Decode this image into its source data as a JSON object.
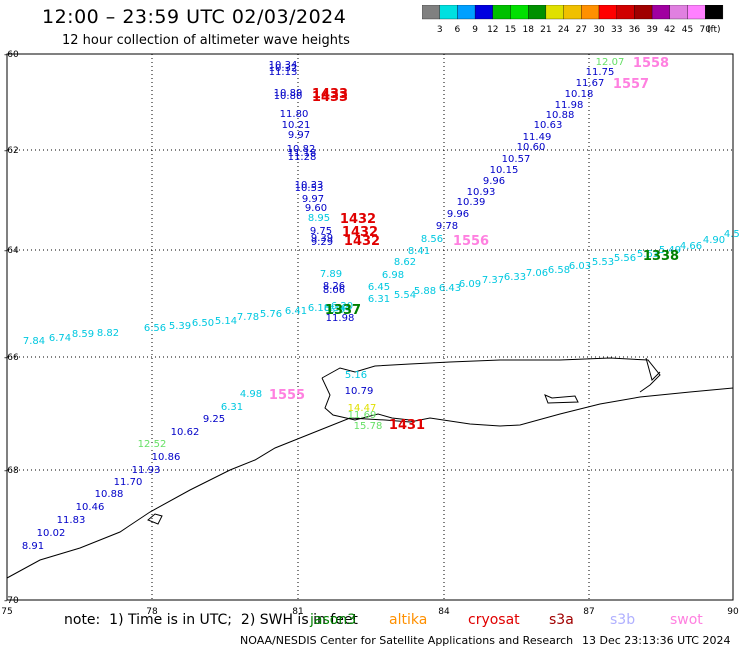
{
  "title": "12:00 – 23:59 UTC 02/03/2024",
  "subtitle": "12 hour collection of altimeter wave heights",
  "colorbar": {
    "unit": "(ft)",
    "labels": [
      "3",
      "6",
      "9",
      "12",
      "15",
      "18",
      "21",
      "24",
      "27",
      "30",
      "33",
      "36",
      "39",
      "42",
      "45",
      "70"
    ],
    "colors": [
      "#808080",
      "#00e0e0",
      "#00a0ff",
      "#0000e0",
      "#00c000",
      "#00e000",
      "#009000",
      "#e0e000",
      "#f0c000",
      "#ff9000",
      "#ff0000",
      "#d00000",
      "#a00000",
      "#a000a0",
      "#e080e0",
      "#ff80ff",
      "#000000"
    ]
  },
  "axes": {
    "lat_labels": [
      "-60",
      "-62",
      "-64",
      "-66",
      "-68",
      "-70"
    ],
    "lon_labels": [
      "75",
      "78",
      "81",
      "84",
      "87",
      "90"
    ]
  },
  "tracks": [
    {
      "color": "#0000c8",
      "labels": [
        "10.34",
        "10.32",
        "11.13",
        "10.89",
        "10.80",
        "11.80",
        "10.21",
        "9.97",
        "10.82",
        "11.18",
        "11.28",
        "10.33",
        "10.53",
        "9.97",
        "9.60",
        "9.75",
        "9.39",
        "9.29"
      ]
    },
    {
      "color": "#00c8e0",
      "labels": [
        "8.95",
        "7.89"
      ]
    },
    {
      "color": "#0000c8",
      "labels": [
        "8.26",
        "8.06",
        "11.98"
      ]
    },
    {
      "color": "#0000c8",
      "labels": [
        "8.91",
        "10.02",
        "11.83",
        "10.46",
        "10.88",
        "11.70",
        "11.93",
        "10.86",
        "10.62",
        "9.25"
      ]
    },
    {
      "color": "#00c8e0",
      "labels": [
        "6.31",
        "4.98"
      ]
    },
    {
      "color": "#66e066",
      "labels": [
        "12.52"
      ]
    },
    {
      "color": "#00c8e0",
      "labels": [
        "7.84",
        "6.74",
        "8.59",
        "8.82",
        "6.56",
        "5.39",
        "6.50",
        "5.14",
        "7.78",
        "5.76",
        "6.41",
        "6.18",
        "6.34",
        "6.20"
      ]
    },
    {
      "color": "#0000c8",
      "labels": [
        "9.78",
        "9.96",
        "10.39",
        "10.93",
        "9.96",
        "10.15",
        "10.57",
        "10.60",
        "11.49",
        "10.63",
        "10.88",
        "11.98",
        "10.18",
        "11.67",
        "11.75"
      ]
    },
    {
      "color": "#66e066",
      "labels": [
        "12.07"
      ]
    },
    {
      "color": "#00c8e0",
      "labels": [
        "6.99",
        "6.31",
        "5.54",
        "5.88",
        "6.43",
        "6.09",
        "7.37",
        "6.33",
        "7.06",
        "6.58",
        "6.03",
        "5.53",
        "5.56",
        "5.63",
        "5.49",
        "4.66",
        "4.90",
        "4.53"
      ]
    },
    {
      "color": "#00c8e0",
      "labels": [
        "6.45",
        "6.98",
        "8.62",
        "8.41",
        "8.56"
      ]
    },
    {
      "color": "#00c8e0",
      "labels": [
        "5.16"
      ]
    },
    {
      "color": "#0000c8",
      "labels": [
        "10.79"
      ]
    },
    {
      "color": "#e0e000",
      "labels": [
        "14.47"
      ]
    },
    {
      "color": "#66e066",
      "labels": [
        "11.69",
        "15.78"
      ]
    }
  ],
  "time_labels": [
    {
      "text": "1433",
      "color": "#e00000"
    },
    {
      "text": "1433",
      "color": "#e00000"
    },
    {
      "text": "1432",
      "color": "#e00000"
    },
    {
      "text": "1432",
      "color": "#e00000"
    },
    {
      "text": "1432",
      "color": "#e00000"
    },
    {
      "text": "1337",
      "color": "#008000"
    },
    {
      "text": "1338",
      "color": "#008000"
    },
    {
      "text": "1556",
      "color": "#ff80e0"
    },
    {
      "text": "1555",
      "color": "#ff80e0"
    },
    {
      "text": "1557",
      "color": "#ff80e0"
    },
    {
      "text": "1558",
      "color": "#ff80e0"
    },
    {
      "text": "1431",
      "color": "#e00000"
    }
  ],
  "footer": {
    "note": "note:  1) Time is in UTC;  2) SWH is in feet",
    "legend": [
      {
        "text": "jason3",
        "color": "#008000"
      },
      {
        "text": "altika",
        "color": "#ff9000"
      },
      {
        "text": "cryosat",
        "color": "#e00000"
      },
      {
        "text": "s3a",
        "color": "#a00000"
      },
      {
        "text": "s3b",
        "color": "#b0b0ff"
      },
      {
        "text": "swot",
        "color": "#ff80e0"
      }
    ],
    "credit": "NOAA/NESDIS Center for Satellite Applications and Research",
    "timestamp": "13 Dec 23:13:36 UTC 2024"
  }
}
